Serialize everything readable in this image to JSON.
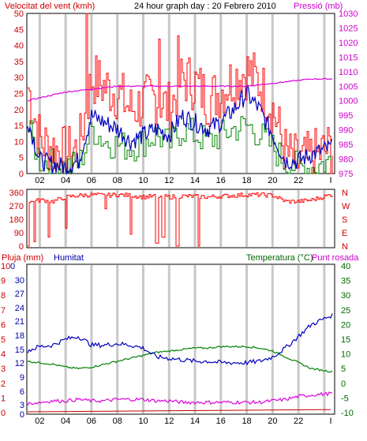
{
  "colors": {
    "background": "#ffffff",
    "grid": "#c8c8c8",
    "wind_gust": "#ff0000",
    "wind_average": "#008000",
    "humidity_line": "#0000c0",
    "pressure": "#dd00dd",
    "direction": "#ff0000",
    "rain": "#c00000",
    "temperature": "#008000",
    "dew_point": "#dd00dd",
    "label_red": "#cc0000",
    "label_blue": "#0000aa",
    "label_green": "#006600",
    "label_magenta": "#cc00cc"
  },
  "chart_data": [
    {
      "type": "line",
      "title": "24 hour graph day : 20 Febrero 2010",
      "left_axis_label": "Velocitat del vent (kmh)",
      "right_axis_label": "Pressió (mb)",
      "x_ticks": [
        "02",
        "04",
        "06",
        "08",
        "10",
        "12",
        "14",
        "16",
        "18",
        "20",
        "22",
        "I"
      ],
      "left_ticks": [
        "50",
        "45",
        "40",
        "35",
        "30",
        "25",
        "20",
        "15",
        "10",
        "5",
        "0"
      ],
      "right_ticks": [
        "1030",
        "1025",
        "1020",
        "1015",
        "1010",
        "1005",
        "1000",
        "995",
        "990",
        "985",
        "980",
        "975"
      ],
      "ylim": [
        0,
        50
      ],
      "y2lim": [
        975,
        1030
      ],
      "hours": [
        0,
        1,
        2,
        3,
        4,
        5,
        6,
        7,
        8,
        9,
        10,
        11,
        12,
        13,
        14,
        15,
        16,
        17,
        18,
        19,
        20,
        21,
        22,
        23.5
      ],
      "series": [
        {
          "key": "gust",
          "axis": "left",
          "values": [
            28,
            10,
            8,
            6,
            8,
            30,
            27,
            25,
            20,
            22,
            24,
            20,
            30,
            28,
            23,
            26,
            30,
            32,
            28,
            20,
            6,
            3,
            5,
            8
          ]
        },
        {
          "key": "wind_avg",
          "axis": "left",
          "values": [
            14,
            4,
            3,
            2,
            3,
            14,
            10,
            9,
            8,
            10,
            12,
            9,
            14,
            12,
            10,
            12,
            14,
            15,
            12,
            8,
            3,
            2,
            2,
            4
          ]
        },
        {
          "key": "humidity_top",
          "axis": "left",
          "values": [
            18,
            4,
            3,
            2,
            4,
            18,
            16,
            14,
            10,
            12,
            14,
            12,
            18,
            16,
            14,
            16,
            20,
            25,
            20,
            12,
            4,
            4,
            6,
            8
          ]
        },
        {
          "key": "pressure",
          "axis": "right",
          "values": [
            1000,
            1001,
            1002,
            1003,
            1003.5,
            1004,
            1004.5,
            1005,
            1005,
            1005,
            1005,
            1005,
            1005,
            1005,
            1005,
            1005,
            1005,
            1005,
            1005.5,
            1006,
            1006.5,
            1007,
            1007.5,
            1007.5
          ]
        }
      ],
      "spikes": [
        {
          "hour": 4.6,
          "value": 50
        },
        {
          "hour": 11.7,
          "value": 43
        },
        {
          "hour": 10.2,
          "value": 42
        }
      ]
    },
    {
      "type": "line",
      "left_ticks": [
        "360",
        "270",
        "180",
        "90",
        "0"
      ],
      "right_ticks": [
        "N",
        "W",
        "S",
        "E",
        "N"
      ],
      "ylim": [
        0,
        360
      ],
      "hours": [
        0,
        1,
        2,
        3,
        4,
        5,
        6,
        7,
        8,
        9,
        10,
        11,
        12,
        13,
        14,
        15,
        16,
        17,
        18,
        19,
        20,
        21,
        22,
        23.5
      ],
      "values": [
        290,
        310,
        300,
        330,
        340,
        345,
        340,
        345,
        340,
        330,
        335,
        330,
        335,
        335,
        330,
        335,
        340,
        345,
        345,
        340,
        300,
        300,
        310,
        345
      ],
      "drops": [
        {
          "hour": 0.1,
          "value": 0
        },
        {
          "hour": 0.6,
          "value": 30
        },
        {
          "hour": 1.6,
          "value": 60
        },
        {
          "hour": 3.0,
          "value": 120
        },
        {
          "hour": 6.0,
          "value": 250
        },
        {
          "hour": 8.0,
          "value": 80
        },
        {
          "hour": 10.0,
          "value": 20
        },
        {
          "hour": 10.5,
          "value": 60
        },
        {
          "hour": 11.6,
          "value": 0
        },
        {
          "hour": 13.2,
          "value": 0
        }
      ]
    },
    {
      "type": "line",
      "left_axis_label_1": "Pluja (mm)",
      "left_axis_label_2": "Humitat",
      "right_axis_label_1": "Temperatura (°C)",
      "right_axis_label_2": "Punt rosada",
      "x_ticks": [
        "02",
        "04",
        "06",
        "08",
        "10",
        "12",
        "14",
        "16",
        "18",
        "20",
        "22",
        "I"
      ],
      "rain_ticks": [
        "10",
        "9",
        "8",
        "7",
        "6",
        "5",
        "4",
        "3",
        "2",
        "1",
        "0"
      ],
      "humidity_ticks": [
        "0",
        "30",
        "27",
        "24",
        "21",
        "18",
        "15",
        "12",
        "9",
        "6",
        "3",
        "0"
      ],
      "temperature_ticks": [
        "40",
        "35",
        "30",
        "25",
        "20",
        "15",
        "10",
        "5",
        "0",
        "-5",
        "-10"
      ],
      "ylim": [
        -10,
        40
      ],
      "hours": [
        0,
        1,
        2,
        3,
        4,
        5,
        6,
        7,
        8,
        9,
        10,
        11,
        12,
        13,
        14,
        15,
        16,
        17,
        18,
        19,
        20,
        21,
        22,
        23.5
      ],
      "series": [
        {
          "key": "humidity",
          "values": [
            11,
            12.5,
            13,
            15,
            16,
            13,
            13,
            13.5,
            13,
            12,
            9,
            8.5,
            8,
            7.5,
            7.5,
            7,
            7,
            7,
            7.5,
            9,
            12,
            16,
            20,
            23
          ]
        },
        {
          "key": "temperature",
          "values": [
            7.5,
            7,
            6.5,
            5.5,
            5,
            5.5,
            6.5,
            7.5,
            8.5,
            9.5,
            10.5,
            11,
            11.5,
            12,
            12,
            12.5,
            12.5,
            12.5,
            12,
            11,
            9,
            7,
            5,
            4
          ]
        },
        {
          "key": "dew_point",
          "values": [
            -7,
            -6.5,
            -6,
            -6,
            -5.5,
            -6,
            -6,
            -5.5,
            -5.5,
            -5.5,
            -6,
            -6,
            -6.5,
            -6.5,
            -6.5,
            -6.5,
            -6.5,
            -6.5,
            -6.5,
            -6,
            -5.5,
            -4.5,
            -4,
            -3.5
          ]
        },
        {
          "key": "rain",
          "values": [
            0,
            0,
            0,
            0,
            0,
            0,
            0,
            0,
            0,
            0,
            0,
            0,
            0,
            0,
            0,
            0,
            0,
            0,
            0,
            0,
            0,
            0,
            0,
            0
          ]
        }
      ]
    }
  ]
}
